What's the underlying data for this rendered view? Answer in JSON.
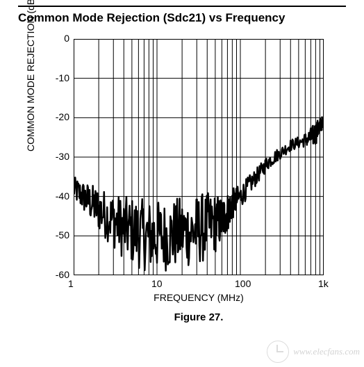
{
  "title": "Common Mode Rejection (Sdc21) vs Frequency",
  "ylabel": "COMMON MODE REJECTION (dBc)",
  "xlabel": "FREQUENCY (MHz)",
  "caption": "Figure 27.",
  "watermark_text": "www.elecfans.com",
  "chart": {
    "type": "line",
    "background_color": "#ffffff",
    "axis_color": "#000000",
    "grid_color": "#000000",
    "trace_color": "#000000",
    "trace_width": 2.5,
    "font_size_title": 17,
    "font_size_axis": 14,
    "border_width": 2,
    "grid_width_major": 1,
    "x": {
      "scale": "log",
      "min": 1,
      "max": 1000,
      "ticks": [
        1,
        10,
        100,
        1000
      ],
      "tick_labels": [
        "1",
        "10",
        "100",
        "1k"
      ]
    },
    "y": {
      "scale": "linear",
      "min": -60,
      "max": 0,
      "ticks": [
        0,
        -10,
        -20,
        -30,
        -40,
        -50,
        -60
      ]
    },
    "series": [
      {
        "x": 1.0,
        "y": -38,
        "jitter": 3
      },
      {
        "x": 1.3,
        "y": -40,
        "jitter": 4
      },
      {
        "x": 1.7,
        "y": -42,
        "jitter": 5
      },
      {
        "x": 2.2,
        "y": -44,
        "jitter": 6
      },
      {
        "x": 3.0,
        "y": -46,
        "jitter": 7
      },
      {
        "x": 4.0,
        "y": -48,
        "jitter": 8
      },
      {
        "x": 5.5,
        "y": -49,
        "jitter": 9
      },
      {
        "x": 7.5,
        "y": -50,
        "jitter": 9
      },
      {
        "x": 10,
        "y": -50,
        "jitter": 9
      },
      {
        "x": 14,
        "y": -50,
        "jitter": 9
      },
      {
        "x": 19,
        "y": -49,
        "jitter": 9
      },
      {
        "x": 26,
        "y": -49,
        "jitter": 9
      },
      {
        "x": 35,
        "y": -48,
        "jitter": 9
      },
      {
        "x": 48,
        "y": -47,
        "jitter": 8
      },
      {
        "x": 60,
        "y": -46,
        "jitter": 6
      },
      {
        "x": 70,
        "y": -44,
        "jitter": 5
      },
      {
        "x": 80,
        "y": -42,
        "jitter": 4
      },
      {
        "x": 100,
        "y": -40,
        "jitter": 3
      },
      {
        "x": 130,
        "y": -37,
        "jitter": 2.5
      },
      {
        "x": 170,
        "y": -34,
        "jitter": 2
      },
      {
        "x": 220,
        "y": -31,
        "jitter": 2
      },
      {
        "x": 300,
        "y": -29,
        "jitter": 1.5
      },
      {
        "x": 400,
        "y": -27,
        "jitter": 1.5
      },
      {
        "x": 550,
        "y": -26,
        "jitter": 1.5
      },
      {
        "x": 700,
        "y": -25,
        "jitter": 2.5
      },
      {
        "x": 800,
        "y": -24,
        "jitter": 3
      },
      {
        "x": 900,
        "y": -22,
        "jitter": 2
      },
      {
        "x": 1000,
        "y": -21,
        "jitter": 1.5
      }
    ]
  }
}
